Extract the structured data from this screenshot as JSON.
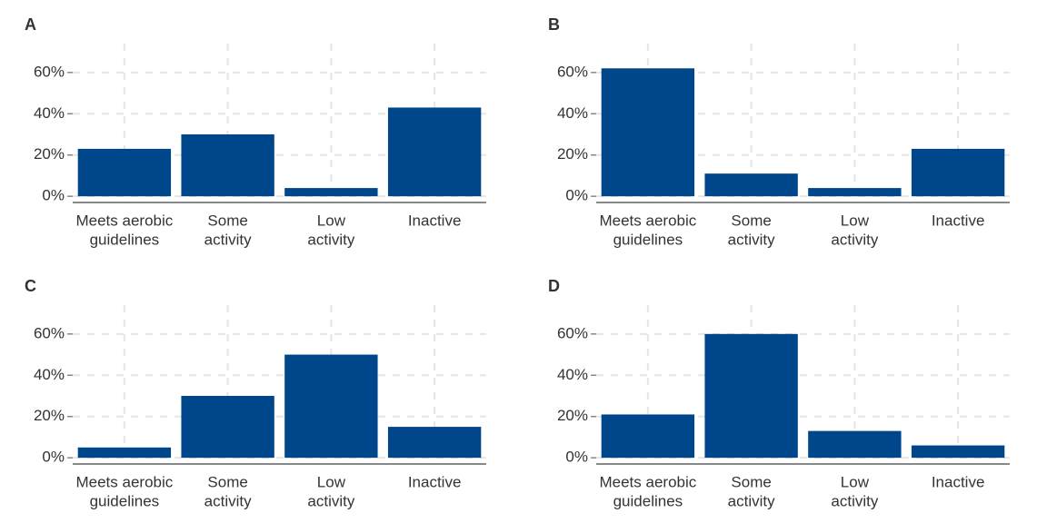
{
  "chart_data": [
    {
      "type": "bar",
      "title": "A",
      "categories": [
        [
          "Meets aerobic",
          "guidelines"
        ],
        [
          "Some",
          "activity"
        ],
        [
          "Low",
          "activity"
        ],
        [
          "Inactive"
        ]
      ],
      "values": [
        23,
        30,
        4,
        43
      ],
      "color": "#00468b",
      "ylim": [
        -3,
        74
      ],
      "yticks": [
        {
          "value": 0,
          "label": "0%"
        },
        {
          "value": 20,
          "label": "20%"
        },
        {
          "value": 40,
          "label": "40%"
        },
        {
          "value": 60,
          "label": "60%"
        }
      ],
      "grid": true
    },
    {
      "type": "bar",
      "title": "B",
      "categories": [
        [
          "Meets aerobic",
          "guidelines"
        ],
        [
          "Some",
          "activity"
        ],
        [
          "Low",
          "activity"
        ],
        [
          "Inactive"
        ]
      ],
      "values": [
        62,
        11,
        4,
        23
      ],
      "color": "#00468b",
      "ylim": [
        -3,
        74
      ],
      "yticks": [
        {
          "value": 0,
          "label": "0%"
        },
        {
          "value": 20,
          "label": "20%"
        },
        {
          "value": 40,
          "label": "40%"
        },
        {
          "value": 60,
          "label": "60%"
        }
      ],
      "grid": true
    },
    {
      "type": "bar",
      "title": "C",
      "categories": [
        [
          "Meets aerobic",
          "guidelines"
        ],
        [
          "Some",
          "activity"
        ],
        [
          "Low",
          "activity"
        ],
        [
          "Inactive"
        ]
      ],
      "values": [
        5,
        30,
        50,
        15
      ],
      "color": "#00468b",
      "ylim": [
        -3,
        74
      ],
      "yticks": [
        {
          "value": 0,
          "label": "0%"
        },
        {
          "value": 20,
          "label": "20%"
        },
        {
          "value": 40,
          "label": "40%"
        },
        {
          "value": 60,
          "label": "60%"
        }
      ],
      "grid": true
    },
    {
      "type": "bar",
      "title": "D",
      "categories": [
        [
          "Meets aerobic",
          "guidelines"
        ],
        [
          "Some",
          "activity"
        ],
        [
          "Low",
          "activity"
        ],
        [
          "Inactive"
        ]
      ],
      "values": [
        21,
        60,
        13,
        6
      ],
      "color": "#00468b",
      "ylim": [
        -3,
        74
      ],
      "yticks": [
        {
          "value": 0,
          "label": "0%"
        },
        {
          "value": 20,
          "label": "20%"
        },
        {
          "value": 40,
          "label": "40%"
        },
        {
          "value": 60,
          "label": "60%"
        }
      ],
      "grid": true
    }
  ]
}
